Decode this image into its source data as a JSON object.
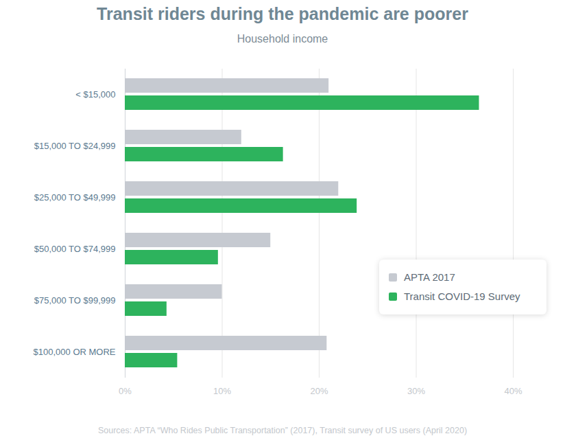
{
  "chart_data": {
    "type": "bar",
    "orientation": "horizontal",
    "title": "Transit riders during the pandemic are poorer",
    "subtitle": "Household income",
    "caption": "Sources: APTA “Who Rides Public Transportation” (2017), Transit survey of US users (April 2020)",
    "categories": [
      "< $15,000",
      "$15,000 TO $24,999",
      "$25,000 TO $49,999",
      "$50,000 TO $74,999",
      "$75,000 TO $99,999",
      "$100,000 OR MORE"
    ],
    "series": [
      {
        "name": "APTA 2017",
        "color": "#c6cad1",
        "values": [
          21,
          12,
          22,
          15,
          10,
          20.8
        ]
      },
      {
        "name": "Transit COVID-19 Survey",
        "color": "#2db35d",
        "values": [
          36.5,
          16.3,
          23.9,
          9.6,
          4.3,
          5.4
        ]
      }
    ],
    "xlim": [
      0,
      40
    ],
    "xticks": [
      {
        "value": 0,
        "label": "0%"
      },
      {
        "value": 10,
        "label": "10%"
      },
      {
        "value": 20,
        "label": "20%"
      },
      {
        "value": 30,
        "label": "30%"
      },
      {
        "value": 40,
        "label": "40%"
      }
    ],
    "grid": true,
    "legend": "right"
  }
}
